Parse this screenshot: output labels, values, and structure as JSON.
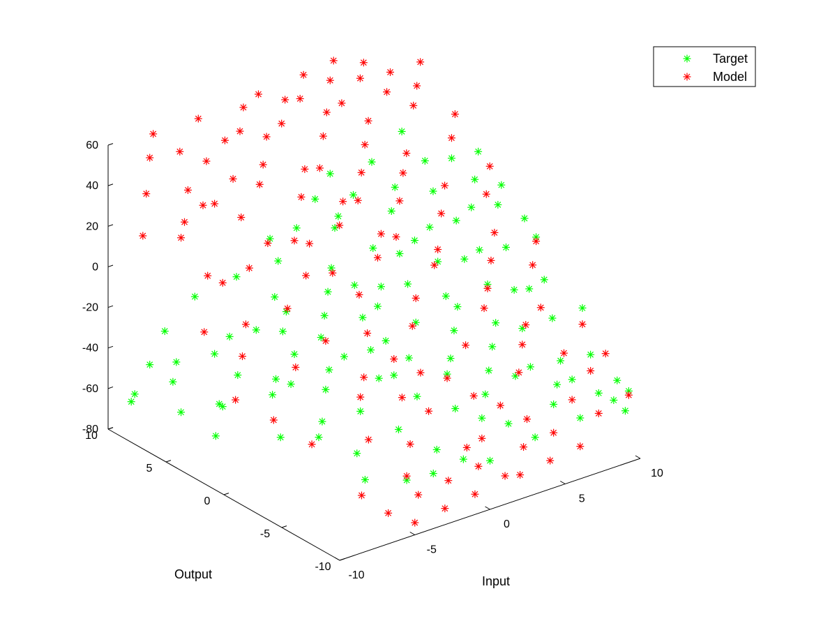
{
  "chart_data": {
    "type": "scatter",
    "title": "",
    "xlabel": "Input",
    "ylabel": "Output",
    "zlabel": "",
    "xlim": [
      -10,
      10
    ],
    "ylim": [
      -10,
      10
    ],
    "zlim": [
      -80,
      60
    ],
    "x_ticks": [
      "-10",
      "-5",
      "0",
      "5",
      "10"
    ],
    "y_ticks": [
      "-10",
      "-5",
      "0",
      "5",
      "10"
    ],
    "z_ticks": [
      "-80",
      "-60",
      "-40",
      "-20",
      "0",
      "20",
      "40",
      "60"
    ],
    "grid": false,
    "legend_position": "top-right",
    "series": [
      {
        "name": "Target",
        "marker": "asterisk",
        "color": "#00ff00",
        "points": [
          [
            -10,
            8,
            -60
          ],
          [
            -8,
            9,
            -50
          ],
          [
            -7,
            8,
            -48
          ],
          [
            -6,
            6,
            -40
          ],
          [
            -4,
            5,
            -30
          ],
          [
            -8,
            7,
            -52
          ],
          [
            -6,
            4,
            -44
          ],
          [
            -5,
            2,
            -42
          ],
          [
            -3,
            3,
            -38
          ],
          [
            -2,
            5,
            -26
          ],
          [
            -7,
            4,
            -57
          ],
          [
            -4,
            2,
            -47
          ],
          [
            -5,
            6,
            -34
          ],
          [
            -1,
            3,
            -24
          ],
          [
            -9,
            5,
            -58
          ],
          [
            -8,
            3,
            -50
          ],
          [
            -6,
            1,
            -44
          ],
          [
            -3,
            0,
            -36
          ],
          [
            -2,
            2,
            -29
          ],
          [
            0,
            4,
            -18
          ],
          [
            -5,
            -2,
            -50
          ],
          [
            -4,
            -4,
            -41
          ],
          [
            -2,
            -3,
            -33
          ],
          [
            -1,
            -1,
            -28
          ],
          [
            0,
            1,
            -21
          ],
          [
            1,
            3,
            -14
          ],
          [
            -3,
            -6,
            -46
          ],
          [
            -1,
            -5,
            -38
          ],
          [
            0,
            -3,
            -28
          ],
          [
            2,
            -1,
            -22
          ],
          [
            3,
            1,
            -12
          ],
          [
            4,
            3,
            -6
          ],
          [
            -2,
            -8,
            -52
          ],
          [
            0,
            -7,
            -40
          ],
          [
            1,
            -5,
            -32
          ],
          [
            3,
            -3,
            -22
          ],
          [
            4,
            -1,
            -14
          ],
          [
            5,
            1,
            -6
          ],
          [
            6,
            3,
            2
          ],
          [
            -1,
            -9,
            -56
          ],
          [
            1,
            -8,
            -44
          ],
          [
            3,
            -6,
            -32
          ],
          [
            5,
            -4,
            -20
          ],
          [
            6,
            -2,
            -10
          ],
          [
            7,
            0,
            -2
          ],
          [
            8,
            2,
            10
          ],
          [
            2,
            -9,
            -46
          ],
          [
            4,
            -7,
            -34
          ],
          [
            6,
            -5,
            -22
          ],
          [
            7,
            -3,
            -12
          ],
          [
            8,
            -1,
            0
          ],
          [
            9,
            1,
            12
          ],
          [
            9,
            3,
            18
          ],
          [
            5,
            -9,
            -44
          ],
          [
            7,
            -7,
            -34
          ],
          [
            8,
            -5,
            -22
          ],
          [
            9,
            -3,
            -12
          ],
          [
            10,
            -1,
            0
          ],
          [
            10,
            2,
            16
          ],
          [
            8,
            -9,
            -46
          ],
          [
            9,
            -7,
            -36
          ],
          [
            10,
            -5,
            -22
          ],
          [
            10,
            -9,
            -50
          ],
          [
            -6,
            -7,
            -60
          ],
          [
            -4,
            -8,
            -62
          ],
          [
            2,
            -4,
            -30
          ],
          [
            4,
            -2,
            -16
          ],
          [
            6,
            0,
            -4
          ],
          [
            0,
            -1,
            -26
          ],
          [
            -2,
            0,
            -32
          ],
          [
            1,
            1,
            -18
          ],
          [
            3,
            4,
            -4
          ],
          [
            5,
            5,
            6
          ],
          [
            7,
            4,
            14
          ],
          [
            2,
            6,
            2
          ],
          [
            4,
            7,
            10
          ],
          [
            6,
            8,
            18
          ],
          [
            8,
            6,
            20
          ],
          [
            -1,
            7,
            -10
          ],
          [
            1,
            8,
            -2
          ],
          [
            3,
            9,
            4
          ],
          [
            -3,
            8,
            -16
          ],
          [
            0,
            9,
            -8
          ],
          [
            -5,
            9,
            -24
          ],
          [
            -7,
            9,
            -36
          ],
          [
            7,
            -8,
            -40
          ],
          [
            9,
            -9,
            -52
          ],
          [
            10,
            -8,
            -48
          ],
          [
            -3,
            -9,
            -58
          ],
          [
            0,
            -10,
            -56
          ],
          [
            3,
            -10,
            -52
          ],
          [
            6,
            -10,
            -50
          ],
          [
            9,
            -10,
            -54
          ],
          [
            -9,
            9,
            -62
          ],
          [
            -9,
            2,
            -60
          ],
          [
            -7,
            -1,
            -56
          ],
          [
            -5,
            -5,
            -56
          ],
          [
            4,
            -5,
            -26
          ],
          [
            2,
            -7,
            -38
          ],
          [
            -2,
            6,
            -22
          ],
          [
            1,
            5,
            -12
          ],
          [
            5,
            3,
            -2
          ],
          [
            7,
            2,
            6
          ],
          [
            9,
            5,
            22
          ],
          [
            10,
            4,
            26
          ],
          [
            10,
            0,
            6
          ],
          [
            8,
            8,
            28
          ],
          [
            6,
            6,
            12
          ],
          [
            4,
            9,
            14
          ],
          [
            -4,
            -1,
            -40
          ],
          [
            -6,
            -3,
            -52
          ],
          [
            3,
            7,
            2
          ],
          [
            5,
            -7,
            -32
          ],
          [
            -1,
            -3,
            -34
          ],
          [
            8,
            -3,
            -14
          ],
          [
            6,
            -8,
            -40
          ],
          [
            2,
            2,
            -14
          ],
          [
            -3,
            4,
            -30
          ]
        ]
      },
      {
        "name": "Model",
        "marker": "asterisk",
        "color": "#ff0000",
        "points": [
          [
            -10,
            7,
            25
          ],
          [
            -9,
            8,
            40
          ],
          [
            -8,
            9,
            52
          ],
          [
            -7,
            10,
            58
          ],
          [
            -6,
            9,
            50
          ],
          [
            -8,
            6,
            30
          ],
          [
            -9,
            5,
            28
          ],
          [
            -7,
            7,
            40
          ],
          [
            -5,
            8,
            46
          ],
          [
            -4,
            10,
            58
          ],
          [
            -3,
            9,
            48
          ],
          [
            -2,
            9,
            50
          ],
          [
            -1,
            10,
            56
          ],
          [
            0,
            10,
            60
          ],
          [
            -6,
            6,
            34
          ],
          [
            -5,
            5,
            28
          ],
          [
            -4,
            7,
            38
          ],
          [
            -3,
            6,
            36
          ],
          [
            -2,
            7,
            40
          ],
          [
            -1,
            8,
            48
          ],
          [
            0,
            8,
            52
          ],
          [
            1,
            9,
            58
          ],
          [
            2,
            9,
            56
          ],
          [
            3,
            10,
            62
          ],
          [
            4,
            9,
            60
          ],
          [
            5,
            10,
            64
          ],
          [
            -8,
            4,
            10
          ],
          [
            -6,
            3,
            12
          ],
          [
            -4,
            4,
            16
          ],
          [
            -3,
            3,
            18
          ],
          [
            -1,
            5,
            28
          ],
          [
            0,
            6,
            36
          ],
          [
            2,
            7,
            44
          ],
          [
            3,
            8,
            50
          ],
          [
            4,
            8,
            52
          ],
          [
            6,
            9,
            56
          ],
          [
            7,
            10,
            58
          ],
          [
            -7,
            2,
            -10
          ],
          [
            -5,
            1,
            -4
          ],
          [
            -3,
            2,
            4
          ],
          [
            -2,
            1,
            6
          ],
          [
            0,
            3,
            18
          ],
          [
            1,
            4,
            24
          ],
          [
            3,
            5,
            30
          ],
          [
            4,
            6,
            38
          ],
          [
            5,
            7,
            44
          ],
          [
            7,
            8,
            50
          ],
          [
            8,
            9,
            54
          ],
          [
            -6,
            -1,
            -24
          ],
          [
            -4,
            -1,
            -16
          ],
          [
            -2,
            -2,
            -14
          ],
          [
            -1,
            0,
            -4
          ],
          [
            1,
            1,
            6
          ],
          [
            2,
            2,
            12
          ],
          [
            4,
            3,
            20
          ],
          [
            5,
            4,
            28
          ],
          [
            6,
            5,
            32
          ],
          [
            8,
            7,
            44
          ],
          [
            9,
            8,
            48
          ],
          [
            10,
            9,
            54
          ],
          [
            -4,
            -4,
            -34
          ],
          [
            -2,
            -5,
            -36
          ],
          [
            -1,
            -3,
            -26
          ],
          [
            1,
            -2,
            -18
          ],
          [
            2,
            -1,
            -10
          ],
          [
            4,
            0,
            -2
          ],
          [
            6,
            2,
            12
          ],
          [
            7,
            3,
            20
          ],
          [
            9,
            5,
            32
          ],
          [
            10,
            6,
            38
          ],
          [
            -5,
            -6,
            -46
          ],
          [
            -3,
            -7,
            -50
          ],
          [
            -1,
            -6,
            -42
          ],
          [
            1,
            -5,
            -34
          ],
          [
            3,
            -4,
            -26
          ],
          [
            5,
            -3,
            -16
          ],
          [
            7,
            -1,
            -4
          ],
          [
            8,
            0,
            4
          ],
          [
            9,
            2,
            14
          ],
          [
            10,
            3,
            22
          ],
          [
            -4,
            -9,
            -66
          ],
          [
            -2,
            -9,
            -64
          ],
          [
            0,
            -8,
            -56
          ],
          [
            1,
            -8,
            -54
          ],
          [
            3,
            -7,
            -46
          ],
          [
            5,
            -6,
            -38
          ],
          [
            6,
            -5,
            -30
          ],
          [
            8,
            -4,
            -20
          ],
          [
            9,
            -2,
            -8
          ],
          [
            10,
            -1,
            -2
          ],
          [
            -5,
            -10,
            -74
          ],
          [
            -3,
            -10,
            -72
          ],
          [
            -1,
            -10,
            -70
          ],
          [
            1,
            -10,
            -66
          ],
          [
            3,
            -9,
            -60
          ],
          [
            5,
            -9,
            -58
          ],
          [
            7,
            -8,
            -50
          ],
          [
            9,
            -7,
            -44
          ],
          [
            10,
            -5,
            -30
          ],
          [
            -6,
            -9,
            -70
          ],
          [
            -4,
            -8,
            -60
          ],
          [
            0,
            -9,
            -62
          ],
          [
            2,
            -10,
            -68
          ],
          [
            4,
            -10,
            -66
          ],
          [
            6,
            -10,
            -64
          ],
          [
            8,
            -9,
            -56
          ],
          [
            10,
            -9,
            -52
          ],
          [
            10,
            -7,
            -38
          ],
          [
            -7,
            -8,
            -62
          ],
          [
            -8,
            -5,
            -44
          ],
          [
            -9,
            -3,
            -36
          ],
          [
            -10,
            -1,
            -30
          ],
          [
            -8,
            1,
            -20
          ],
          [
            -9,
            3,
            -12
          ],
          [
            -7,
            4,
            4
          ],
          [
            -6,
            7,
            30
          ],
          [
            2,
            4,
            22
          ],
          [
            3,
            2,
            8
          ],
          [
            6,
            -2,
            -12
          ],
          [
            7,
            -4,
            -26
          ],
          [
            8,
            -6,
            -36
          ],
          [
            -2,
            3,
            14
          ],
          [
            0,
            -4,
            -32
          ],
          [
            2,
            -6,
            -42
          ],
          [
            4,
            -8,
            -52
          ],
          [
            -3,
            -3,
            -30
          ],
          [
            1,
            6,
            34
          ],
          [
            5,
            1,
            0
          ]
        ]
      }
    ]
  },
  "legend": {
    "items": [
      {
        "label": "Target",
        "color": "#00ff00"
      },
      {
        "label": "Model",
        "color": "#ff0000"
      }
    ]
  }
}
